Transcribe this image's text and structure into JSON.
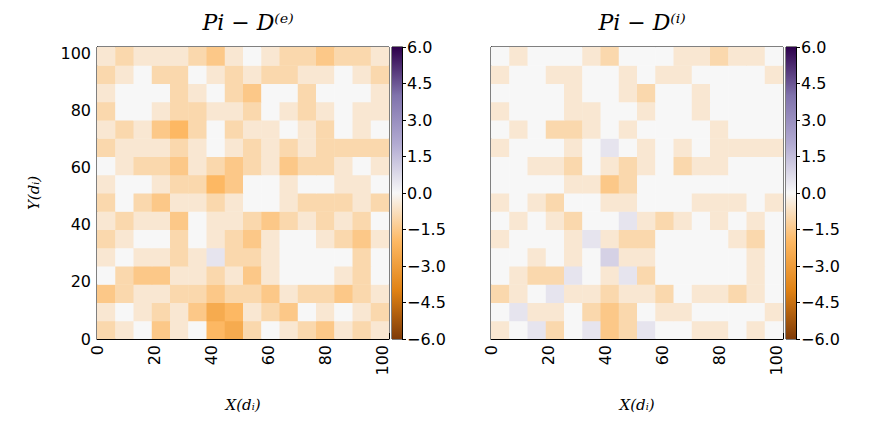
{
  "chart_data": [
    {
      "type": "heatmap",
      "title": "Pi − D⁽ᵉ⁾",
      "xlabel": "X(dᵢ)",
      "ylabel": "Y(dᵢ)",
      "xlim": [
        0,
        102.4
      ],
      "ylim": [
        0,
        102.4
      ],
      "xticks": [
        0,
        20,
        40,
        60,
        80,
        100
      ],
      "yticks": [
        0,
        20,
        40,
        60,
        80,
        100
      ],
      "grid": false,
      "tick_labels": true,
      "x_edges": [
        0,
        6.4,
        12.8,
        19.2,
        25.6,
        32,
        38.4,
        44.8,
        51.2,
        57.6,
        64,
        70.4,
        76.8,
        83.2,
        89.6,
        96,
        102.4
      ],
      "y_edges": [
        0,
        6.4,
        12.8,
        19.2,
        25.6,
        32,
        38.4,
        44.8,
        51.2,
        57.6,
        64,
        70.4,
        76.8,
        83.2,
        89.6,
        96,
        102.4
      ],
      "cells": [
        [
          -1,
          -0.5,
          0,
          -1.5,
          -0.5,
          0,
          -2,
          -2.5,
          -1,
          0,
          -0.5,
          -1,
          -1.5,
          -0.5,
          -1,
          -0.5
        ],
        [
          -0.5,
          0,
          -0.5,
          -1,
          -0.5,
          -1.5,
          -2.5,
          -2,
          -0.5,
          -1,
          -1.5,
          0,
          -0.5,
          0,
          -0.5,
          -1
        ],
        [
          -1.5,
          -1,
          -0.5,
          -0.5,
          -1,
          -1,
          -1.5,
          -1,
          -1,
          -1.5,
          -0.5,
          -1,
          -1,
          -1.5,
          -1,
          -0.5
        ],
        [
          0,
          -1,
          -1.5,
          -1.5,
          -0.5,
          -0.5,
          -1,
          -0.5,
          -1.5,
          -0.5,
          0,
          0,
          0,
          -0.5,
          -1,
          0
        ],
        [
          -0.5,
          0,
          -0.5,
          -0.5,
          -1,
          -0.5,
          0.5,
          -1,
          -1,
          -0.5,
          0,
          0,
          0,
          0,
          -1,
          0
        ],
        [
          -1,
          -0.5,
          0,
          0,
          -1,
          0,
          -0.5,
          -1,
          -1.5,
          -0.5,
          0,
          0,
          -0.5,
          -1,
          -1.5,
          -0.5
        ],
        [
          -0.5,
          -1,
          -0.5,
          -0.5,
          -1.5,
          0,
          -0.5,
          -0.5,
          -1,
          -1.5,
          -1,
          -0.5,
          -1,
          -0.5,
          -1,
          0
        ],
        [
          -1,
          0,
          -1,
          -1.5,
          -0.5,
          -0.5,
          -1,
          -0.5,
          0,
          0,
          -0.5,
          -1,
          -1,
          -1,
          -0.5,
          -1
        ],
        [
          -0.5,
          0,
          0,
          -0.5,
          -1,
          -1,
          -2,
          -1.5,
          0,
          0,
          -0.5,
          0,
          0,
          -0.5,
          -0.5,
          0
        ],
        [
          0,
          -0.5,
          -1,
          -1,
          -1.5,
          -0.5,
          -1,
          -1.5,
          -1,
          -0.5,
          -1.5,
          -1,
          -1,
          -0.5,
          0,
          -0.5
        ],
        [
          -1,
          -0.5,
          -0.5,
          -0.5,
          -1,
          -0.5,
          0,
          -0.5,
          -1,
          -0.5,
          -1,
          -0.5,
          -1,
          -1,
          -1,
          -1
        ],
        [
          -0.5,
          -1,
          -0.5,
          -1.5,
          -2,
          -1,
          0,
          -1,
          -0.5,
          -0.5,
          0,
          -0.5,
          -1,
          0,
          -0.5,
          0
        ],
        [
          -1,
          0,
          0,
          -0.5,
          -1,
          -1,
          -0.5,
          -0.5,
          -1,
          0,
          -0.5,
          -1,
          -0.5,
          0,
          -0.5,
          -0.5
        ],
        [
          -0.5,
          0,
          0,
          0,
          -1,
          -0.5,
          0,
          -1,
          -1.5,
          0,
          0,
          -1,
          0,
          0,
          0,
          -0.5
        ],
        [
          -1,
          -0.5,
          0,
          -1,
          -1,
          0,
          -0.5,
          -1,
          -0.5,
          -1,
          -1,
          -0.5,
          -0.5,
          0,
          -0.5,
          -1
        ],
        [
          -0.5,
          -1,
          -0.5,
          -0.5,
          -0.5,
          -1,
          -1.5,
          -0.5,
          0,
          -0.5,
          -1,
          -1,
          -1.5,
          -1,
          -1,
          -0.5
        ]
      ],
      "colorbar": {
        "range": [
          -6,
          6
        ],
        "ticks": [
          {
            "value": -6,
            "label": "−6.0"
          },
          {
            "value": -4.5,
            "label": "−4.5"
          },
          {
            "value": -3,
            "label": "−3.0"
          },
          {
            "value": -1.5,
            "label": "−1.5"
          },
          {
            "value": 0,
            "label": "0.0"
          },
          {
            "value": 1.5,
            "label": "1.5"
          },
          {
            "value": 3,
            "label": "3.0"
          },
          {
            "value": 4.5,
            "label": "4.5"
          },
          {
            "value": 6,
            "label": "6.0"
          }
        ]
      }
    },
    {
      "type": "heatmap",
      "title": "Pi − D⁽ⁱ⁾",
      "xlabel": "X(dᵢ)",
      "xlim": [
        0,
        102.4
      ],
      "ylim": [
        0,
        102.4
      ],
      "xticks": [
        0,
        20,
        40,
        60,
        80,
        100
      ],
      "yticks": [
        0,
        20,
        40,
        60,
        80,
        100
      ],
      "grid": false,
      "tick_labels": "x",
      "x_edges": [
        0,
        6.4,
        12.8,
        19.2,
        25.6,
        32,
        38.4,
        44.8,
        51.2,
        57.6,
        64,
        70.4,
        76.8,
        83.2,
        89.6,
        96,
        102.4
      ],
      "y_edges": [
        0,
        6.4,
        12.8,
        19.2,
        25.6,
        32,
        38.4,
        44.8,
        51.2,
        57.6,
        64,
        70.4,
        76.8,
        83.2,
        89.6,
        96,
        102.4
      ],
      "cells": [
        [
          -0.5,
          0,
          0.5,
          -1,
          0,
          0.5,
          -1.5,
          -1,
          0.5,
          0,
          0,
          -0.5,
          -0.5,
          0,
          -0.5,
          0
        ],
        [
          0,
          0.5,
          -0.5,
          -0.5,
          0,
          -1,
          -1.5,
          -1,
          0,
          -0.5,
          -0.5,
          0,
          0,
          0,
          0,
          -0.5
        ],
        [
          -1,
          -0.5,
          0,
          0.5,
          -0.5,
          -0.5,
          -1,
          -0.5,
          -0.5,
          -1,
          0,
          -0.5,
          -0.5,
          -1,
          -0.5,
          0
        ],
        [
          0,
          -0.5,
          -1,
          -1,
          0.5,
          0,
          -0.5,
          0.5,
          -1,
          0,
          0,
          0,
          0,
          0,
          -0.5,
          0
        ],
        [
          0,
          0,
          -0.5,
          0,
          -0.5,
          0,
          1,
          -0.5,
          -0.5,
          0,
          0,
          0,
          0,
          0,
          -0.5,
          0
        ],
        [
          -0.5,
          0,
          0,
          0,
          -0.5,
          0.5,
          -0.5,
          -1,
          -1,
          0,
          0,
          0,
          0,
          -0.5,
          -1,
          0
        ],
        [
          0,
          -0.5,
          0,
          -0.5,
          -1,
          0,
          0,
          0.5,
          -0.5,
          -1,
          -0.5,
          0,
          -0.5,
          0,
          -0.5,
          0
        ],
        [
          -0.5,
          0,
          -0.5,
          -1,
          0,
          0,
          -0.5,
          -0.5,
          0,
          0,
          0,
          -0.5,
          -0.5,
          -0.5,
          0,
          -0.5
        ],
        [
          0,
          0,
          0,
          0,
          -0.5,
          -0.5,
          -1.5,
          -1,
          0,
          0,
          0,
          0,
          0,
          0,
          0,
          0
        ],
        [
          0,
          0,
          -0.5,
          -0.5,
          -1,
          0,
          -0.5,
          -1,
          -0.5,
          0,
          -1,
          -0.5,
          -0.5,
          0,
          0,
          0
        ],
        [
          -0.5,
          0,
          0,
          0,
          -0.5,
          0,
          0.5,
          0,
          -0.5,
          0,
          -0.5,
          0,
          -0.5,
          -0.5,
          -0.5,
          -0.5
        ],
        [
          0,
          -0.5,
          0,
          -1,
          -1,
          -0.5,
          0,
          -0.5,
          0,
          0,
          0,
          0,
          -0.5,
          0,
          0,
          0
        ],
        [
          -0.5,
          0,
          0,
          0,
          -0.5,
          -0.5,
          0,
          0,
          -0.5,
          0,
          0,
          -0.5,
          0,
          0,
          0,
          0
        ],
        [
          0,
          0,
          0,
          0,
          -0.5,
          0,
          0,
          -0.5,
          -1,
          0,
          0,
          -0.5,
          0,
          0,
          0,
          0
        ],
        [
          -0.5,
          0,
          0,
          -0.5,
          -0.5,
          0,
          0,
          -0.5,
          0,
          -0.5,
          -0.5,
          0,
          0,
          0,
          0,
          -0.5
        ],
        [
          0,
          -0.5,
          0,
          0,
          0,
          -0.5,
          -1,
          0,
          0,
          0,
          -0.5,
          -0.5,
          -1,
          -0.5,
          -0.5,
          0
        ]
      ],
      "colorbar": {
        "range": [
          -6,
          6
        ],
        "ticks": [
          {
            "value": -6,
            "label": "−6.0"
          },
          {
            "value": -4.5,
            "label": "−4.5"
          },
          {
            "value": -3,
            "label": "−3.0"
          },
          {
            "value": -1.5,
            "label": "−1.5"
          },
          {
            "value": 0,
            "label": "0.0"
          },
          {
            "value": 1.5,
            "label": "1.5"
          },
          {
            "value": 3,
            "label": "3.0"
          },
          {
            "value": 4.5,
            "label": "4.5"
          },
          {
            "value": 6,
            "label": "6.0"
          }
        ]
      }
    }
  ]
}
